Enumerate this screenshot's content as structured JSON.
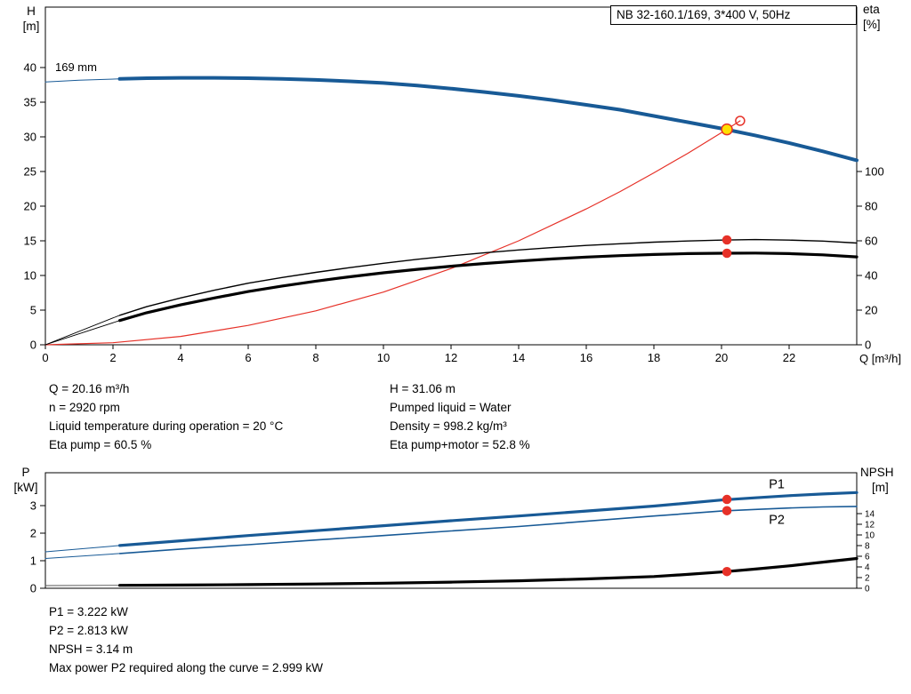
{
  "title_box": "NB 32-160.1/169, 3*400 V, 50Hz",
  "impeller": "169 mm",
  "axis_labels": {
    "top_left_1": "H",
    "top_left_2": "[m]",
    "top_right_1": "eta",
    "top_right_2": "[%]",
    "x_label": "Q [m³/h]",
    "bottom_left_1": "P",
    "bottom_left_2": "[kW]",
    "bottom_right_1": "NPSH",
    "bottom_right_2": "[m]"
  },
  "duty_results": {
    "col1": [
      "Q = 20.16 m³/h",
      "n = 2920 rpm",
      "Liquid temperature during operation = 20 °C",
      "Eta pump = 60.5 %"
    ],
    "col2": [
      "H = 31.06 m",
      "Pumped liquid = Water",
      "Density = 998.2 kg/m³",
      "Eta pump+motor = 52.8 %"
    ]
  },
  "power_results": [
    "P1 = 3.222 kW",
    "P2 = 2.813 kW",
    "NPSH = 3.14 m",
    "Max power P2 required along the curve = 2.999 kW"
  ],
  "colors": {
    "curve_blue": "#185a96",
    "marker_red": "#e63128",
    "duty_yellow": "#ffdf00"
  },
  "chart_data": [
    {
      "name": "hq-eta-chart",
      "type": "line",
      "title": "NB 32-160.1/169, 3*400 V, 50Hz",
      "xlabel": "Q [m³/h]",
      "ylabel_left": "H [m]",
      "ylabel_right": "eta [%]",
      "xlim": [
        0,
        24
      ],
      "ylim_left": [
        0,
        48.7
      ],
      "ylim_right": [
        0,
        194.8
      ],
      "x_ticks": [
        0,
        2,
        4,
        6,
        8,
        10,
        12,
        14,
        16,
        18,
        20,
        22
      ],
      "show_x_labels": true,
      "y_left_ticks": [
        0,
        5,
        10,
        15,
        20,
        25,
        30,
        35,
        40
      ],
      "y_right_ticks": [
        0,
        20,
        40,
        60,
        80,
        100
      ],
      "tick_font": 13,
      "annotation": "169 mm",
      "series": [
        {
          "name": "pump-head-curve-thin-start",
          "axis": "left",
          "color": "#185a96",
          "width": 1,
          "points": [
            [
              0,
              37.9
            ],
            [
              1,
              38.15
            ],
            [
              2.2,
              38.35
            ]
          ]
        },
        {
          "name": "pump-head-curve",
          "axis": "left",
          "color": "#185a96",
          "width": 4,
          "points": [
            [
              2.2,
              38.35
            ],
            [
              3,
              38.45
            ],
            [
              4,
              38.5
            ],
            [
              5,
              38.5
            ],
            [
              6,
              38.45
            ],
            [
              7,
              38.35
            ],
            [
              8,
              38.2
            ],
            [
              9,
              38.0
            ],
            [
              10,
              37.75
            ],
            [
              11,
              37.4
            ],
            [
              12,
              36.95
            ],
            [
              13,
              36.45
            ],
            [
              14,
              35.9
            ],
            [
              15,
              35.3
            ],
            [
              16,
              34.6
            ],
            [
              17,
              33.9
            ],
            [
              18,
              33.0
            ],
            [
              19,
              32.1
            ],
            [
              20,
              31.2
            ],
            [
              21,
              30.2
            ],
            [
              22,
              29.1
            ],
            [
              23,
              27.9
            ],
            [
              24,
              26.6
            ]
          ]
        },
        {
          "name": "system-curve",
          "axis": "left",
          "color": "#e63128",
          "width": 1.2,
          "points": [
            [
              0,
              0
            ],
            [
              2,
              0.3
            ],
            [
              4,
              1.2
            ],
            [
              6,
              2.8
            ],
            [
              8,
              4.9
            ],
            [
              10,
              7.6
            ],
            [
              12,
              11.0
            ],
            [
              14,
              15.0
            ],
            [
              16,
              19.6
            ],
            [
              17,
              22.1
            ],
            [
              18,
              24.8
            ],
            [
              19,
              27.6
            ],
            [
              20,
              30.6
            ],
            [
              20.55,
              32.3
            ]
          ]
        },
        {
          "name": "eta-pump-curve-thin-start",
          "axis": "right",
          "color": "#000000",
          "width": 0.9,
          "points": [
            [
              0,
              0
            ],
            [
              2.2,
              17
            ]
          ]
        },
        {
          "name": "eta-pump-curve",
          "axis": "right",
          "color": "#000000",
          "width": 1.4,
          "points": [
            [
              2.2,
              17
            ],
            [
              3,
              22
            ],
            [
              4,
              27
            ],
            [
              5,
              31.5
            ],
            [
              6,
              35.5
            ],
            [
              7,
              38.8
            ],
            [
              8,
              41.8
            ],
            [
              9,
              44.5
            ],
            [
              10,
              47
            ],
            [
              11,
              49.3
            ],
            [
              12,
              51.3
            ],
            [
              13,
              53.1
            ],
            [
              14,
              54.7
            ],
            [
              15,
              56.1
            ],
            [
              16,
              57.3
            ],
            [
              17,
              58.3
            ],
            [
              18,
              59.2
            ],
            [
              19,
              59.9
            ],
            [
              20,
              60.4
            ],
            [
              21,
              60.7
            ],
            [
              22,
              60.4
            ],
            [
              23,
              59.8
            ],
            [
              24,
              58.7
            ]
          ]
        },
        {
          "name": "eta-pump-motor-curve-thin-start",
          "axis": "right",
          "color": "#000000",
          "width": 0.9,
          "points": [
            [
              0,
              0
            ],
            [
              2.2,
              14
            ]
          ]
        },
        {
          "name": "eta-pump-motor-curve",
          "axis": "right",
          "color": "#000000",
          "width": 3.2,
          "points": [
            [
              2.2,
              14
            ],
            [
              3,
              18.5
            ],
            [
              4,
              23
            ],
            [
              5,
              27
            ],
            [
              6,
              30.7
            ],
            [
              7,
              33.9
            ],
            [
              8,
              36.7
            ],
            [
              9,
              39.2
            ],
            [
              10,
              41.5
            ],
            [
              11,
              43.5
            ],
            [
              12,
              45.3
            ],
            [
              13,
              46.9
            ],
            [
              14,
              48.3
            ],
            [
              15,
              49.5
            ],
            [
              16,
              50.6
            ],
            [
              17,
              51.4
            ],
            [
              18,
              52.1
            ],
            [
              19,
              52.6
            ],
            [
              20,
              52.8
            ],
            [
              21,
              52.9
            ],
            [
              22,
              52.6
            ],
            [
              23,
              51.9
            ],
            [
              24,
              50.7
            ]
          ]
        }
      ],
      "markers": [
        {
          "name": "duty-point-open-circle",
          "axis": "left",
          "x": 20.55,
          "y": 32.3,
          "r": 5,
          "fill": "none",
          "stroke": "#e63128"
        },
        {
          "name": "duty-point",
          "axis": "left",
          "x": 20.16,
          "y": 31.06,
          "r": 6,
          "fill": "#ffdf00",
          "stroke": "#e63128"
        },
        {
          "name": "eta-pump-duty-dot",
          "axis": "right",
          "x": 20.16,
          "y": 60.5,
          "r": 4.5,
          "fill": "#e63128",
          "stroke": "#e63128"
        },
        {
          "name": "eta-pump-motor-duty-dot",
          "axis": "right",
          "x": 20.16,
          "y": 52.8,
          "r": 4.5,
          "fill": "#e63128",
          "stroke": "#e63128"
        }
      ],
      "labels": []
    },
    {
      "name": "power-npsh-chart",
      "type": "line",
      "title": "",
      "xlabel": "",
      "ylabel_left": "P [kW]",
      "ylabel_right": "NPSH [m]",
      "xlim": [
        0,
        24
      ],
      "ylim_left": [
        0,
        4.19
      ],
      "ylim_right": [
        0,
        21.7
      ],
      "x_ticks": [],
      "show_x_labels": false,
      "y_left_ticks": [
        0,
        1,
        2,
        3
      ],
      "y_right_ticks": [
        0,
        2,
        4,
        6,
        8,
        10,
        12,
        14
      ],
      "tick_font": 13,
      "right_font": 10,
      "series": [
        {
          "name": "p1-curve-thin-start",
          "axis": "left",
          "color": "#185a96",
          "width": 1,
          "points": [
            [
              0,
              1.32
            ],
            [
              2.2,
              1.55
            ]
          ]
        },
        {
          "name": "p1-curve",
          "axis": "left",
          "color": "#185a96",
          "width": 3.2,
          "points": [
            [
              2.2,
              1.55
            ],
            [
              4,
              1.72
            ],
            [
              6,
              1.91
            ],
            [
              8,
              2.09
            ],
            [
              10,
              2.27
            ],
            [
              12,
              2.45
            ],
            [
              14,
              2.62
            ],
            [
              16,
              2.8
            ],
            [
              18,
              2.98
            ],
            [
              20,
              3.2
            ],
            [
              21,
              3.28
            ],
            [
              22,
              3.36
            ],
            [
              23,
              3.42
            ],
            [
              24,
              3.47
            ]
          ]
        },
        {
          "name": "p2-curve-thin-start",
          "axis": "left",
          "color": "#185a96",
          "width": 1,
          "points": [
            [
              0,
              1.08
            ],
            [
              2.2,
              1.26
            ]
          ]
        },
        {
          "name": "p2-curve",
          "axis": "left",
          "color": "#185a96",
          "width": 1.6,
          "points": [
            [
              2.2,
              1.26
            ],
            [
              4,
              1.42
            ],
            [
              6,
              1.58
            ],
            [
              8,
              1.75
            ],
            [
              10,
              1.91
            ],
            [
              12,
              2.08
            ],
            [
              14,
              2.24
            ],
            [
              16,
              2.43
            ],
            [
              18,
              2.62
            ],
            [
              20,
              2.8
            ],
            [
              21,
              2.86
            ],
            [
              22,
              2.91
            ],
            [
              23,
              2.95
            ],
            [
              24,
              2.97
            ]
          ]
        },
        {
          "name": "npsh-curve-thin-start",
          "axis": "right",
          "color": "#555555",
          "width": 0.9,
          "points": [
            [
              0,
              0.5
            ],
            [
              2.2,
              0.55
            ]
          ]
        },
        {
          "name": "npsh-curve",
          "axis": "right",
          "color": "#000000",
          "width": 3.2,
          "points": [
            [
              2.2,
              0.55
            ],
            [
              4,
              0.6
            ],
            [
              6,
              0.68
            ],
            [
              8,
              0.8
            ],
            [
              10,
              0.95
            ],
            [
              12,
              1.15
            ],
            [
              14,
              1.4
            ],
            [
              16,
              1.75
            ],
            [
              18,
              2.2
            ],
            [
              19,
              2.6
            ],
            [
              20,
              3.05
            ],
            [
              21,
              3.6
            ],
            [
              22,
              4.2
            ],
            [
              23,
              4.9
            ],
            [
              24,
              5.6
            ]
          ]
        }
      ],
      "markers": [
        {
          "name": "p1-duty-dot",
          "axis": "left",
          "x": 20.16,
          "y": 3.222,
          "r": 4.5,
          "fill": "#e63128",
          "stroke": "#e63128"
        },
        {
          "name": "p2-duty-dot",
          "axis": "left",
          "x": 20.16,
          "y": 2.813,
          "r": 4.5,
          "fill": "#e63128",
          "stroke": "#e63128"
        },
        {
          "name": "npsh-duty-dot",
          "axis": "right",
          "x": 20.16,
          "y": 3.14,
          "r": 4.5,
          "fill": "#e63128",
          "stroke": "#e63128"
        }
      ],
      "labels": [
        {
          "name": "p1-series-label",
          "text": "P1",
          "axis": "left",
          "x": 21.4,
          "y": 3.62,
          "color": "#185a96"
        },
        {
          "name": "p2-series-label",
          "text": "P2",
          "axis": "left",
          "x": 21.4,
          "y": 2.33,
          "color": "#185a96"
        }
      ]
    }
  ]
}
